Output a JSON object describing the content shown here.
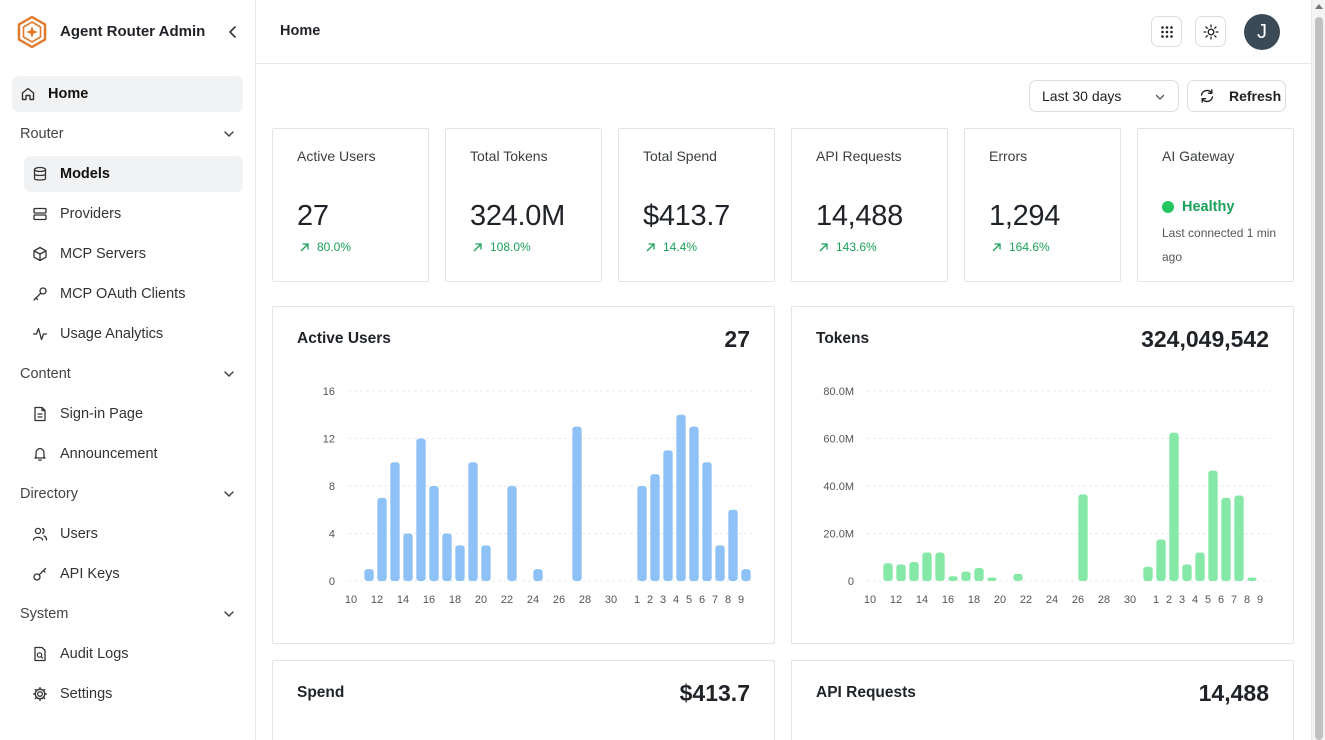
{
  "app": {
    "title": "Agent Router Admin"
  },
  "header": {
    "breadcrumb": "Home",
    "avatar_initial": "J"
  },
  "sidebar": {
    "home": "Home",
    "sections": [
      {
        "label": "Router",
        "items": [
          "Models",
          "Providers",
          "MCP Servers",
          "MCP OAuth Clients",
          "Usage Analytics"
        ]
      },
      {
        "label": "Content",
        "items": [
          "Sign-in Page",
          "Announcement"
        ]
      },
      {
        "label": "Directory",
        "items": [
          "Users",
          "API Keys"
        ]
      },
      {
        "label": "System",
        "items": [
          "Audit Logs",
          "Settings"
        ]
      }
    ]
  },
  "controls": {
    "range": "Last 30 days",
    "refresh": "Refresh"
  },
  "stats": [
    {
      "label": "Active Users",
      "value": "27",
      "delta": "80.0%"
    },
    {
      "label": "Total Tokens",
      "value": "324.0M",
      "delta": "108.0%"
    },
    {
      "label": "Total Spend",
      "value": "$413.7",
      "delta": "14.4%"
    },
    {
      "label": "API Requests",
      "value": "14,488",
      "delta": "143.6%"
    },
    {
      "label": "Errors",
      "value": "1,294",
      "delta": "164.6%"
    }
  ],
  "gateway": {
    "label": "AI Gateway",
    "status": "Healthy",
    "last_connected": "Last connected 1 min ago"
  },
  "colors": {
    "users_bar": "#8ec1f5",
    "tokens_bar": "#86e8a6",
    "healthy": "#22c55e",
    "delta": "#1aa15a"
  },
  "charts": {
    "spend": {
      "title": "Spend",
      "total": "$413.7"
    },
    "requests": {
      "title": "API Requests",
      "total": "14,488"
    }
  },
  "chart_data": [
    {
      "type": "bar",
      "title": "Active Users",
      "total": "27",
      "x": [
        "10",
        "11",
        "12",
        "13",
        "14",
        "15",
        "16",
        "17",
        "18",
        "19",
        "20",
        "21",
        "22",
        "23",
        "24",
        "25",
        "26",
        "27",
        "28",
        "29",
        "30",
        "31",
        "1",
        "2",
        "3",
        "4",
        "5",
        "6",
        "7",
        "8",
        "9"
      ],
      "x_tick_labels": [
        "10",
        "12",
        "14",
        "16",
        "18",
        "20",
        "22",
        "24",
        "26",
        "28",
        "30",
        "1",
        "2",
        "3",
        "4",
        "5",
        "6",
        "7",
        "8",
        "9"
      ],
      "values": [
        0,
        1,
        7,
        10,
        4,
        12,
        8,
        4,
        3,
        10,
        3,
        0,
        8,
        0,
        1,
        0,
        0,
        13,
        0,
        0,
        0,
        0,
        8,
        9,
        11,
        14,
        13,
        10,
        3,
        6,
        1
      ],
      "y_ticks": [
        "0",
        "4",
        "8",
        "12",
        "16"
      ],
      "ylim": [
        0,
        16
      ],
      "grid": true
    },
    {
      "type": "bar",
      "title": "Tokens",
      "total": "324,049,542",
      "x": [
        "10",
        "11",
        "12",
        "13",
        "14",
        "15",
        "16",
        "17",
        "18",
        "19",
        "20",
        "21",
        "22",
        "23",
        "24",
        "25",
        "26",
        "27",
        "28",
        "29",
        "30",
        "31",
        "1",
        "2",
        "3",
        "4",
        "5",
        "6",
        "7",
        "8",
        "9"
      ],
      "x_tick_labels": [
        "10",
        "12",
        "14",
        "16",
        "18",
        "20",
        "22",
        "24",
        "26",
        "28",
        "30",
        "1",
        "2",
        "3",
        "4",
        "5",
        "6",
        "7",
        "8",
        "9"
      ],
      "values": [
        0,
        7.5,
        7,
        8,
        12,
        12,
        2,
        4,
        5.5,
        1.5,
        0,
        3,
        0,
        0,
        0,
        0,
        36.5,
        0,
        0,
        0,
        0,
        6,
        17.5,
        62.5,
        7,
        12,
        46.5,
        35,
        36,
        1.5,
        0
      ],
      "unit": "M",
      "y_ticks": [
        "0",
        "20.0M",
        "40.0M",
        "60.0M",
        "80.0M"
      ],
      "ylim": [
        0,
        80
      ],
      "grid": true
    }
  ]
}
